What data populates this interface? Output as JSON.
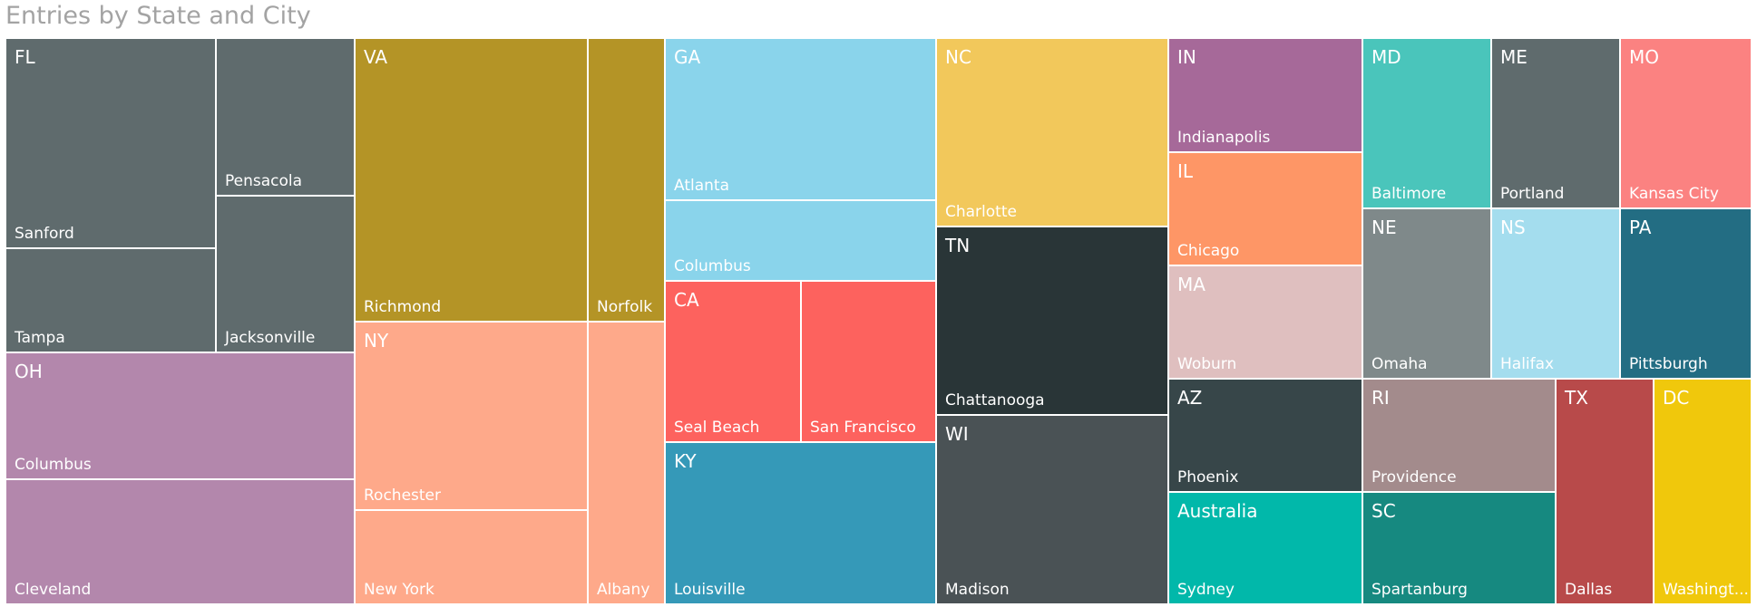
{
  "title": "Entries by State and City",
  "chart_data": {
    "type": "treemap",
    "title": "Entries by State and City",
    "groups": [
      {
        "name": "FL",
        "color": "#5f6b6d",
        "cities": [
          "Sanford",
          "Tampa",
          "Pensacola",
          "Jacksonville"
        ]
      },
      {
        "name": "OH",
        "color": "#b387ac",
        "cities": [
          "Columbus",
          "Cleveland"
        ]
      },
      {
        "name": "VA",
        "color": "#b49426",
        "cities": [
          "Richmond",
          "Norfolk"
        ]
      },
      {
        "name": "NY",
        "color": "#fea98a",
        "cities": [
          "Rochester",
          "New York",
          "Albany"
        ]
      },
      {
        "name": "GA",
        "color": "#8ad4eb",
        "cities": [
          "Atlanta",
          "Columbus"
        ]
      },
      {
        "name": "CA",
        "color": "#fd625e",
        "cities": [
          "Seal Beach",
          "San Francisco"
        ]
      },
      {
        "name": "KY",
        "color": "#3599b8",
        "cities": [
          "Louisville"
        ]
      },
      {
        "name": "NC",
        "color": "#f2c85b",
        "cities": [
          "Charlotte"
        ]
      },
      {
        "name": "TN",
        "color": "#293537",
        "cities": [
          "Chattanooga"
        ]
      },
      {
        "name": "WI",
        "color": "#4a5255",
        "cities": [
          "Madison"
        ]
      },
      {
        "name": "IN",
        "color": "#a66999",
        "cities": [
          "Indianapolis"
        ]
      },
      {
        "name": "IL",
        "color": "#fe9666",
        "cities": [
          "Chicago"
        ]
      },
      {
        "name": "MA",
        "color": "#dfbfbf",
        "cities": [
          "Woburn"
        ]
      },
      {
        "name": "AZ",
        "color": "#374649",
        "cities": [
          "Phoenix"
        ]
      },
      {
        "name": "Australia",
        "color": "#01b8aa",
        "cities": [
          "Sydney"
        ]
      },
      {
        "name": "MD",
        "color": "#4ac5bb",
        "cities": [
          "Baltimore"
        ]
      },
      {
        "name": "ME",
        "color": "#5f6b6d",
        "cities": [
          "Portland"
        ]
      },
      {
        "name": "MO",
        "color": "#fb8281",
        "cities": [
          "Kansas City"
        ]
      },
      {
        "name": "NE",
        "color": "#7f898a",
        "cities": [
          "Omaha"
        ]
      },
      {
        "name": "NS",
        "color": "#a4ddee",
        "cities": [
          "Halifax"
        ]
      },
      {
        "name": "PA",
        "color": "#236d83",
        "cities": [
          "Pittsburgh"
        ]
      },
      {
        "name": "RI",
        "color": "#a38b8c",
        "cities": [
          "Providence"
        ]
      },
      {
        "name": "SC",
        "color": "#168980",
        "cities": [
          "Spartanburg"
        ]
      },
      {
        "name": "TX",
        "color": "#b84a4a",
        "cities": [
          "Dallas"
        ]
      },
      {
        "name": "DC",
        "color": "#f0c80c",
        "cities": [
          "Washingt..."
        ]
      }
    ]
  }
}
